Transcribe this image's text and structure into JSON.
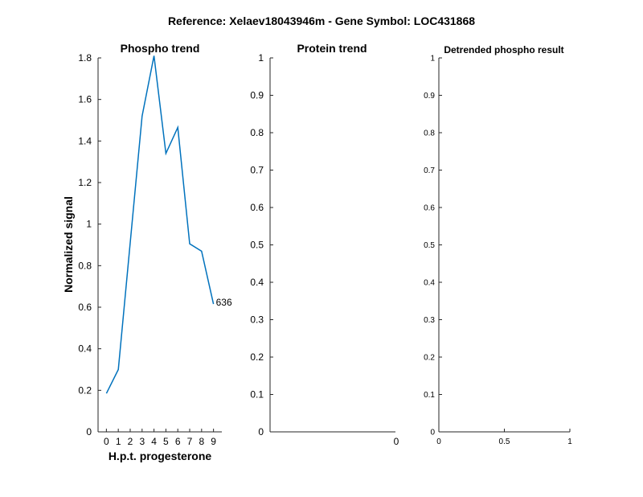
{
  "figure": {
    "suptitle": "Reference:  Xelaev18043946m - Gene Symbol:  LOC431868"
  },
  "chart_data": [
    {
      "type": "line",
      "title": "Phospho trend",
      "xlabel": "H.p.t. progesterone",
      "ylabel": "Normalized signal",
      "xlim": [
        -0.7,
        9.7
      ],
      "ylim": [
        0,
        1.8
      ],
      "xticks": [
        "0",
        "1",
        "2",
        "3",
        "4",
        "5",
        "6",
        "7",
        "8",
        "9"
      ],
      "yticks": [
        "0",
        "0.2",
        "0.4",
        "0.6",
        "0.8",
        "1",
        "1.2",
        "1.4",
        "1.6",
        "1.8"
      ],
      "series": [
        {
          "x": [
            0,
            1,
            3,
            4,
            5,
            6,
            7,
            8,
            9
          ],
          "y": [
            0.185,
            0.3,
            1.52,
            1.81,
            1.34,
            1.465,
            0.905,
            0.87,
            0.615
          ],
          "color": "#0072BD",
          "end_label": "636"
        }
      ]
    },
    {
      "type": "line",
      "title": "Protein trend",
      "ylim": [
        0,
        1
      ],
      "yticks": [
        "0",
        "0.1",
        "0.2",
        "0.3",
        "0.4",
        "0.5",
        "0.6",
        "0.7",
        "0.8",
        "0.9",
        "1"
      ],
      "xticks": [
        "0"
      ],
      "series": []
    },
    {
      "type": "line",
      "title": "Detrended phospho result",
      "xlim": [
        0,
        1
      ],
      "ylim": [
        0,
        1
      ],
      "yticks": [
        "0",
        "0.1",
        "0.2",
        "0.3",
        "0.4",
        "0.5",
        "0.6",
        "0.7",
        "0.8",
        "0.9",
        "1"
      ],
      "xticks": [
        "0",
        "0.5",
        "1"
      ],
      "series": []
    }
  ]
}
